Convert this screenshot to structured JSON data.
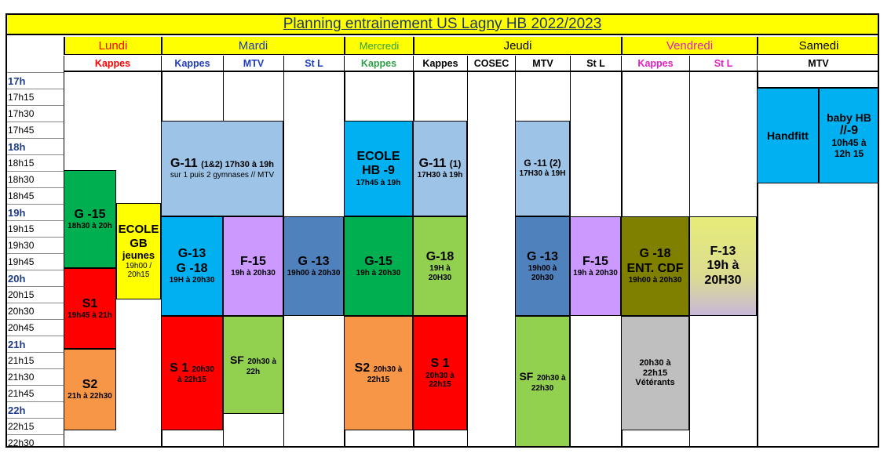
{
  "title": "Planning entrainement US Lagny HB  2022/2023",
  "days": [
    {
      "label": "Lundi",
      "color": "#ff0000"
    },
    {
      "label": "Mardi",
      "color": "#1f3cbf"
    },
    {
      "label": "Mercredi",
      "color": "#2e9e46"
    },
    {
      "label": "Jeudi",
      "color": "#000000"
    },
    {
      "label": "Vendredi",
      "color": "#e020c0"
    },
    {
      "label": "Samedi",
      "color": "#000000"
    }
  ],
  "venues": [
    {
      "label": "Kappes",
      "color": "#ff0000"
    },
    {
      "label": "Kappes",
      "color": "#1f3cbf"
    },
    {
      "label": "MTV",
      "color": "#1f3cbf"
    },
    {
      "label": "St L",
      "color": "#1f3cbf"
    },
    {
      "label": "Kappes",
      "color": "#2e9e46"
    },
    {
      "label": "Kappes",
      "color": "#000000"
    },
    {
      "label": "COSEC",
      "color": "#000000"
    },
    {
      "label": "MTV",
      "color": "#000000"
    },
    {
      "label": "St L",
      "color": "#000000"
    },
    {
      "label": "Kappes",
      "color": "#e020c0"
    },
    {
      "label": "St L",
      "color": "#e020c0"
    },
    {
      "label": "MTV",
      "color": "#000000"
    }
  ],
  "times": [
    "17h",
    "17h15",
    "17h30",
    "17h45",
    "18h",
    "18h15",
    "18h30",
    "18h45",
    "19h",
    "19h15",
    "19h30",
    "19h45",
    "20h",
    "20h15",
    "20h30",
    "20h45",
    "21h",
    "21h15",
    "21h30",
    "21h45",
    "22h",
    "22h15",
    "22h30"
  ],
  "blocks": [
    {
      "main": "G -15",
      "sub": "18h30 à 20h",
      "color": "#00b050"
    },
    {
      "main": "S1",
      "sub": "19h45 à 21h",
      "color": "#ff0000"
    },
    {
      "main": "S2",
      "sub": "21h à 22h30",
      "color": "#f79646"
    },
    {
      "main": "ECOLE GB",
      "main2": "jeunes",
      "sub": "19h00 / 20h15",
      "color": "#ffff00"
    },
    {
      "main": "G-11",
      "main_small": "(1&2) 17h30 à 19h",
      "sub": "sur 1 puis 2 gymnases // MTV",
      "color": "#9dc3e6"
    },
    {
      "main": "G-13",
      "main2": "G -18",
      "sub": "19H à 20h30",
      "color": "#00b0f0"
    },
    {
      "main": "F-15",
      "sub": "19h à 20h30",
      "color": "#cc99ff"
    },
    {
      "main": "G -13",
      "sub": "19h00 à 20h30",
      "color": "#4f81bd"
    },
    {
      "main": "S 1",
      "main_small": "20h30",
      "sub": "à 22h15",
      "color": "#ff0000"
    },
    {
      "main": "SF",
      "main_small": "20h30 à",
      "sub": "22h",
      "color": "#92d050"
    },
    {
      "main": "ECOLE",
      "main2": "HB  -9",
      "sub": "17h45 à 19h",
      "color": "#00b0f0"
    },
    {
      "main": "G-15",
      "sub": "19h à 20h30",
      "color": "#00b050"
    },
    {
      "main": "S2",
      "main_small": "20h30 à",
      "sub": "22h15",
      "color": "#f79646"
    },
    {
      "main": "G-11",
      "main_small": "(1)",
      "sub": "17H30 à 19h",
      "color": "#9dc3e6"
    },
    {
      "main": "G-18",
      "main2": "19H à",
      "sub": "20H30",
      "color": "#92d050"
    },
    {
      "main": "S 1",
      "main2": "20h30 à",
      "sub": "22h15",
      "color": "#ff0000"
    },
    {
      "main": "G -11 (2)",
      "sub": "17H30 à 19H",
      "color": "#9dc3e6"
    },
    {
      "main": "G -13",
      "main2": "19h00 à",
      "sub": "20h30",
      "color": "#4f81bd"
    },
    {
      "main": "SF",
      "main_small": "20h30 à",
      "sub": "22h30",
      "color": "#92d050"
    },
    {
      "main": "F-15",
      "sub": "19h à 20h30",
      "color": "#cc99ff"
    },
    {
      "main": "G -18",
      "main2": "ENT. CDF",
      "sub": "19h00 à  20h30",
      "color": "#7f7f00"
    },
    {
      "main": "20h30 à",
      "main2": "22h15",
      "sub": "Vétérants",
      "color": "#bfbfbf"
    },
    {
      "main": "F-13",
      "main2": "19h à",
      "sub": "20H30",
      "color": "#e0e080"
    },
    {
      "main": "Handfitt",
      "color": "#00b0f0"
    },
    {
      "main": "baby HB",
      "main2": "//-9",
      "sub": "10h45 à",
      "sub2": "12h 15",
      "color": "#00b0f0"
    }
  ]
}
